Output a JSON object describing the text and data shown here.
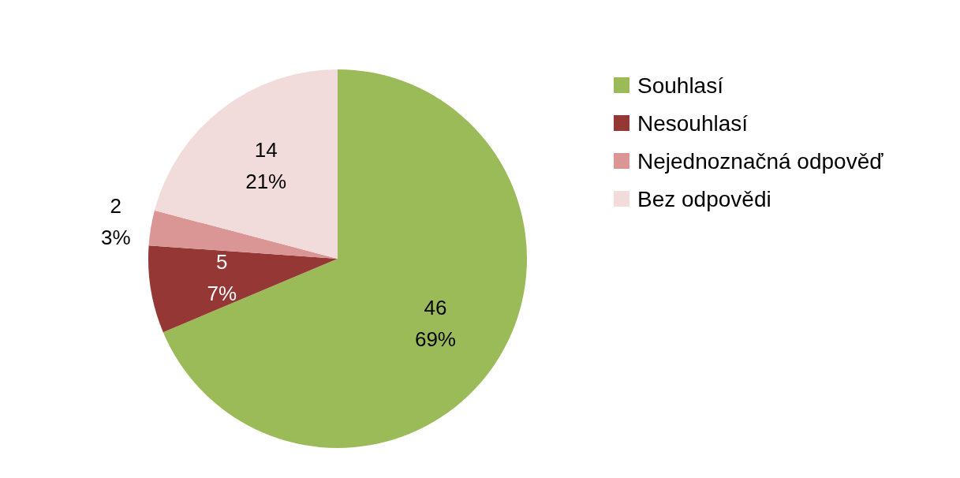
{
  "chart_data": {
    "type": "pie",
    "categories": [
      "Souhlasí",
      "Nesouhlasí",
      "Nejednoznačná odpověď",
      "Bez odpovědi"
    ],
    "values": [
      46,
      5,
      2,
      14
    ],
    "colors": [
      "#9bbb59",
      "#953735",
      "#d99694",
      "#f2dcdb"
    ],
    "value_labels": [
      "46\n69%",
      "5\n7%",
      "2\n3%",
      "14\n21%"
    ],
    "legend": "right"
  }
}
